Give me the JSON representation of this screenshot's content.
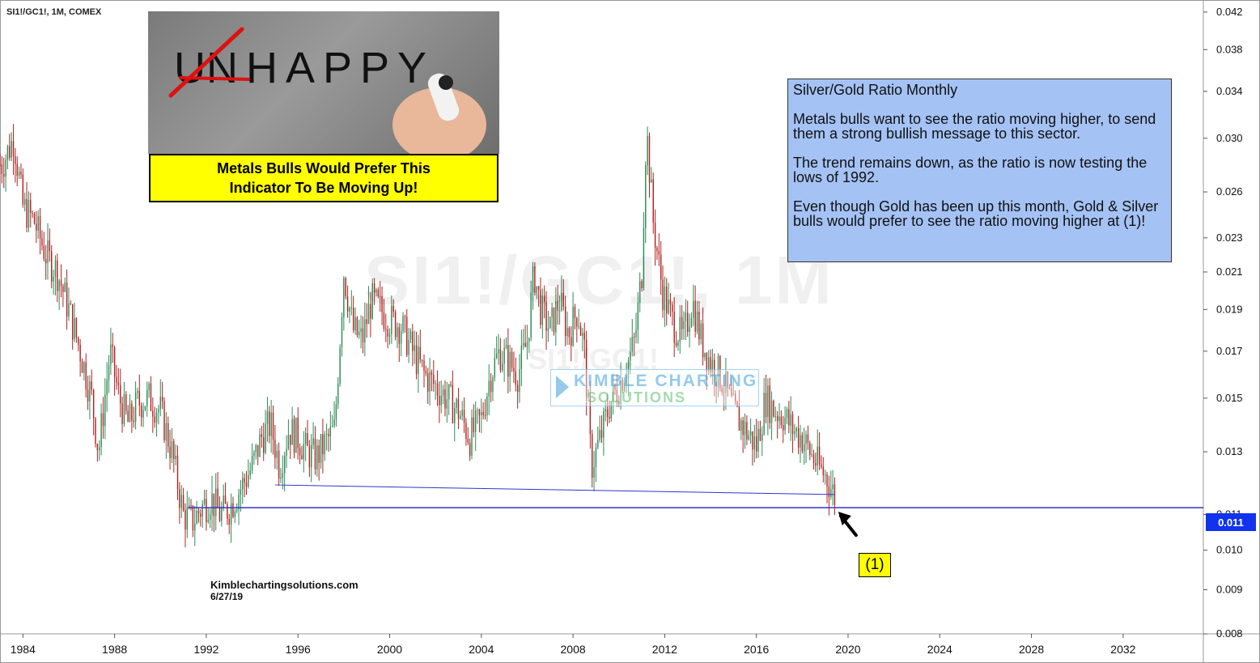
{
  "symbol": "SI1!/GC1!, 1M, COMEX",
  "image_panel": {
    "crossed_letter": "U",
    "word": "NHAPPY"
  },
  "banner": {
    "line1": "Metals Bulls Would Prefer This",
    "line2": "Indicator To Be Moving Up!"
  },
  "note": {
    "title": "Silver/Gold Ratio Monthly",
    "p1": "Metals bulls want to see the ratio moving higher, to send them a strong bullish message to this sector.",
    "p2": "The trend remains down, as the ratio is now testing the lows of 1992.",
    "p3": "Even though Gold has been up this month, Gold & Silver bulls would prefer to see the ratio moving higher at (1)!"
  },
  "watermark": {
    "main": "SI1!/GC1!, 1M",
    "sub": "SI1!/GC1!"
  },
  "logo": {
    "line1": "KIMBLE CHARTING",
    "line2": "SOLUTIONS"
  },
  "credit": {
    "site": "Kimblechartingsolutions.com",
    "date": "6/27/19"
  },
  "callout": {
    "label": "(1)"
  },
  "current_price": "0.011",
  "colors": {
    "up": "#2e8b57",
    "down": "#b22222",
    "trendline": "#3333cc",
    "note_bg": "#a4c2f4",
    "banner_bg": "#ffff00",
    "price_tag": "#1133ee"
  },
  "chart_data": {
    "type": "candlestick",
    "title": "SI1!/GC1!, 1M, COMEX",
    "x_axis": {
      "type": "time",
      "range": [
        1983.0,
        2035.5
      ],
      "tick_labels": [
        "1984",
        "1988",
        "1992",
        "1996",
        "2000",
        "2004",
        "2008",
        "2012",
        "2016",
        "2020",
        "2024",
        "2028",
        "2032"
      ]
    },
    "y_axis": {
      "scale": "log",
      "range": [
        0.008,
        0.043
      ],
      "position": "right",
      "tick_labels": [
        "0.042",
        "0.038",
        "0.034",
        "0.030",
        "0.026",
        "0.023",
        "0.021",
        "0.019",
        "0.017",
        "0.015",
        "0.013",
        "0.011",
        "0.010",
        "0.009",
        "0.008"
      ]
    },
    "series": [
      {
        "name": "SI1!/GC1!",
        "x": [
          1983.1,
          1983.6,
          1984.0,
          1984.5,
          1985.0,
          1985.5,
          1986.0,
          1986.5,
          1987.0,
          1987.3,
          1987.8,
          1988.2,
          1988.6,
          1989.0,
          1989.5,
          1990.0,
          1990.5,
          1991.0,
          1991.4,
          1991.8,
          1992.2,
          1992.6,
          1993.0,
          1993.5,
          1994.0,
          1994.4,
          1994.8,
          1995.2,
          1995.6,
          1996.0,
          1996.4,
          1996.8,
          1997.2,
          1997.6,
          1998.0,
          1998.4,
          1998.8,
          1999.2,
          1999.6,
          2000.0,
          2000.5,
          2001.0,
          2001.5,
          2002.0,
          2002.5,
          2003.0,
          2003.5,
          2004.0,
          2004.4,
          2004.8,
          2005.2,
          2005.6,
          2006.0,
          2006.3,
          2006.6,
          2007.0,
          2007.4,
          2007.8,
          2008.2,
          2008.5,
          2008.8,
          2009.2,
          2009.6,
          2010.0,
          2010.4,
          2010.7,
          2011.0,
          2011.2,
          2011.5,
          2011.9,
          2012.3,
          2012.8,
          2013.2,
          2013.6,
          2014.0,
          2014.5,
          2015.0,
          2015.5,
          2016.0,
          2016.4,
          2016.8,
          2017.2,
          2017.6,
          2018.0,
          2018.4,
          2018.8,
          2019.1,
          2019.5
        ],
        "values": [
          0.028,
          0.03,
          0.025,
          0.024,
          0.022,
          0.021,
          0.019,
          0.017,
          0.015,
          0.013,
          0.017,
          0.015,
          0.014,
          0.0148,
          0.015,
          0.0145,
          0.013,
          0.011,
          0.0108,
          0.0112,
          0.0115,
          0.011,
          0.0112,
          0.0118,
          0.0125,
          0.0135,
          0.014,
          0.0125,
          0.0138,
          0.0135,
          0.013,
          0.0128,
          0.0133,
          0.0138,
          0.021,
          0.018,
          0.0175,
          0.0195,
          0.019,
          0.0185,
          0.0182,
          0.017,
          0.016,
          0.0155,
          0.015,
          0.0145,
          0.0135,
          0.0142,
          0.016,
          0.017,
          0.0165,
          0.016,
          0.0175,
          0.021,
          0.019,
          0.018,
          0.0195,
          0.0178,
          0.019,
          0.017,
          0.0125,
          0.0135,
          0.0148,
          0.0155,
          0.0165,
          0.0175,
          0.021,
          0.031,
          0.024,
          0.02,
          0.0185,
          0.0175,
          0.0195,
          0.0175,
          0.0165,
          0.0158,
          0.0145,
          0.0138,
          0.0132,
          0.015,
          0.0145,
          0.0143,
          0.0138,
          0.0135,
          0.0129,
          0.0124,
          0.0121,
          0.0114
        ]
      }
    ],
    "lines": [
      {
        "name": "support",
        "x": [
          1991.2,
          2035.5
        ],
        "y": [
          0.0112,
          0.0112
        ]
      },
      {
        "name": "trendline",
        "x": [
          1995.0,
          2019.4
        ],
        "y": [
          0.0119,
          0.0116
        ]
      }
    ],
    "annotations": [
      {
        "text": "(1)",
        "x": 2019.5,
        "y": 0.0112
      }
    ]
  }
}
